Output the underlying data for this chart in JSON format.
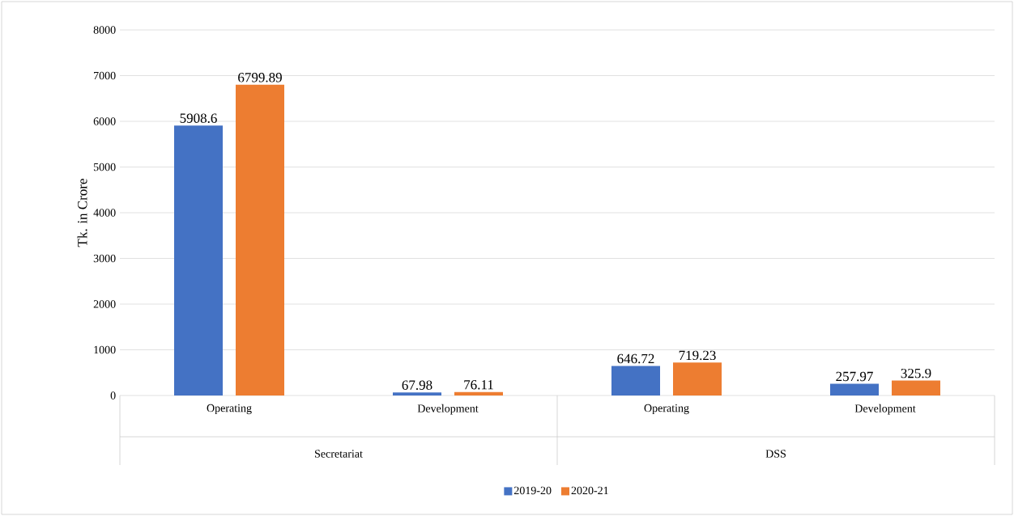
{
  "chart_data": {
    "type": "bar",
    "ylabel": "Tk. in Crore",
    "categories": [
      "Operating",
      "Development",
      "Operating",
      "Development"
    ],
    "annotations": [
      "Secretariat",
      "DSS"
    ],
    "series": [
      {
        "name": "2019-20",
        "color": "#4472c4",
        "values": [
          5908.6,
          67.98,
          646.72,
          257.97
        ],
        "value_labels": [
          "5908.6",
          "67.98",
          "646.72",
          "257.97"
        ]
      },
      {
        "name": "2020-21",
        "color": "#ed7d31",
        "values": [
          6799.89,
          76.11,
          719.23,
          325.9
        ],
        "value_labels": [
          "6799.89",
          "76.11",
          "719.23",
          "325.9"
        ]
      }
    ],
    "ylim": [
      0,
      8000
    ],
    "yticks": [
      0,
      1000,
      2000,
      3000,
      4000,
      5000,
      6000,
      7000,
      8000
    ],
    "grid": "y",
    "legend": "bottom"
  }
}
